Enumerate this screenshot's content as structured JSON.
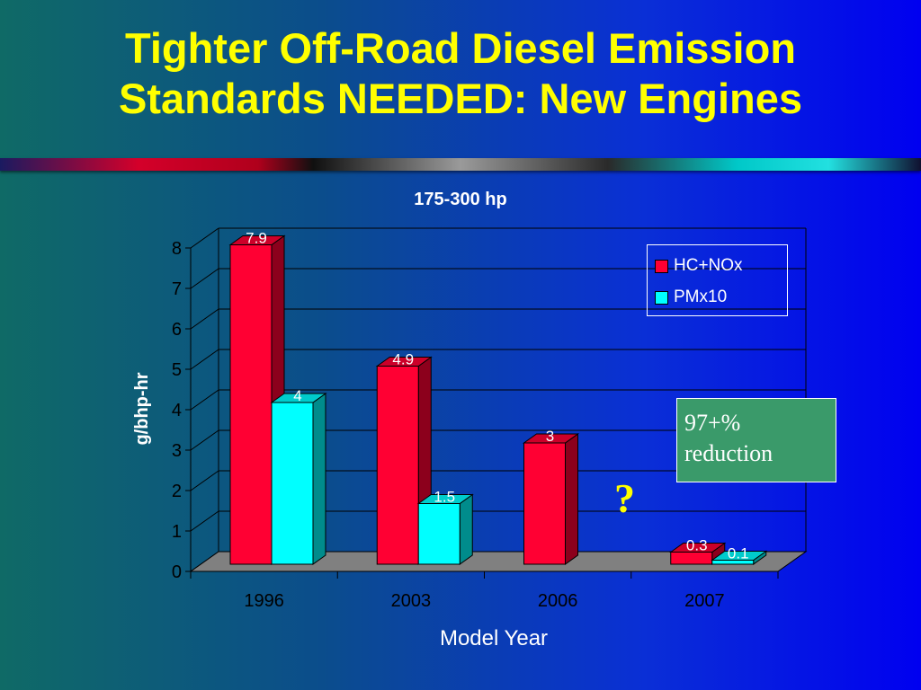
{
  "title_lines": [
    "Tighter Off-Road Diesel Emission",
    "Standards NEEDED:  New Engines"
  ],
  "colors": {
    "title": "#ffff00",
    "hc_nox": "#ff0033",
    "pmx10": "#00ffff",
    "note_box": "#3a9a6a",
    "question": "#ffff00"
  },
  "chart_data": {
    "type": "bar",
    "title": "175-300 hp",
    "xlabel": "Model Year",
    "ylabel": "g/bhp-hr",
    "ylim": [
      0,
      8
    ],
    "yticks": [
      "0",
      "1",
      "2",
      "3",
      "4",
      "5",
      "6",
      "7",
      "8"
    ],
    "categories": [
      "1996",
      "2003",
      "2006",
      "2007"
    ],
    "grid": true,
    "legend_position": "top-right",
    "series": [
      {
        "name": "HC+NOx",
        "values": [
          7.9,
          4.9,
          3,
          0.3
        ],
        "labels": [
          "7.9",
          "4.9",
          "3",
          "0.3"
        ]
      },
      {
        "name": "PMx10",
        "values": [
          4,
          1.5,
          null,
          0.1
        ],
        "labels": [
          "4",
          "1.5",
          "",
          "0.1"
        ]
      }
    ]
  },
  "annotations": {
    "reduction_box": [
      "97+%",
      "reduction"
    ],
    "question_mark": "?"
  }
}
